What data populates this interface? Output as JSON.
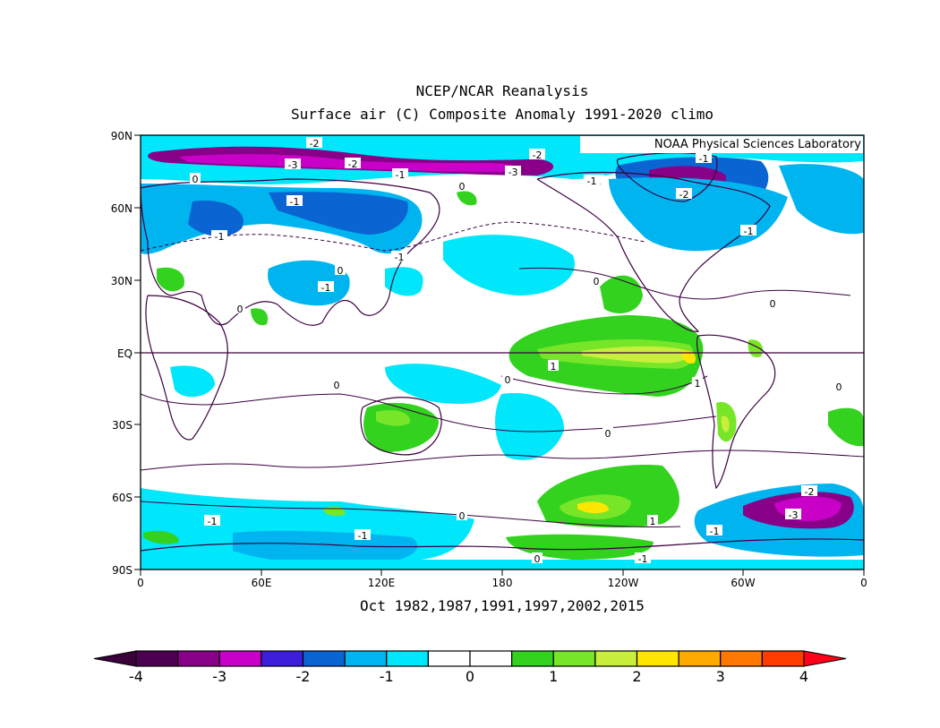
{
  "title_line1": "NCEP/NCAR Reanalysis",
  "title_line2": "Surface air (C) Composite Anomaly 1991-2020 climo",
  "subtitle": "Oct 1982,1987,1991,1997,2002,2015",
  "credit": "NOAA Physical Sciences Laboratory",
  "lat_labels": [
    "90N",
    "60N",
    "30N",
    "EQ",
    "30S",
    "60S",
    "90S"
  ],
  "lon_labels": [
    "0",
    "60E",
    "120E",
    "180",
    "120W",
    "60W",
    "0"
  ],
  "contour_labels": [
    "-2",
    "-3",
    "-2",
    "-1",
    "0",
    "-1",
    "-1",
    "-3",
    "-2",
    "-2",
    "-1",
    "-1",
    "0",
    "0",
    "-1",
    "-1",
    "0",
    "0",
    "0",
    "1",
    "1",
    "0",
    "0",
    "0",
    "0",
    "-1",
    "-1",
    "0",
    "1",
    "0",
    "-1",
    "-1",
    "-1",
    "-2",
    "-3",
    "-1"
  ],
  "colorbar": {
    "labels": [
      "-4",
      "-3",
      "-2",
      "-1",
      "0",
      "1",
      "2",
      "3",
      "4"
    ],
    "colors": [
      "#4b0051",
      "#880088",
      "#c800c8",
      "#3c1edc",
      "#0a64d2",
      "#00b4f0",
      "#00e6fa",
      "#ffffff",
      "#ffffff",
      "#32d21e",
      "#78e628",
      "#c8ef3c",
      "#ffe600",
      "#ffaa00",
      "#ff7800",
      "#ff3c00"
    ],
    "low_color": "#3a003a",
    "high_color": "#ff0018"
  },
  "colors": {
    "ocean": "#ffffff",
    "land_outline": "#3c0040",
    "contour": "#3c0040"
  }
}
